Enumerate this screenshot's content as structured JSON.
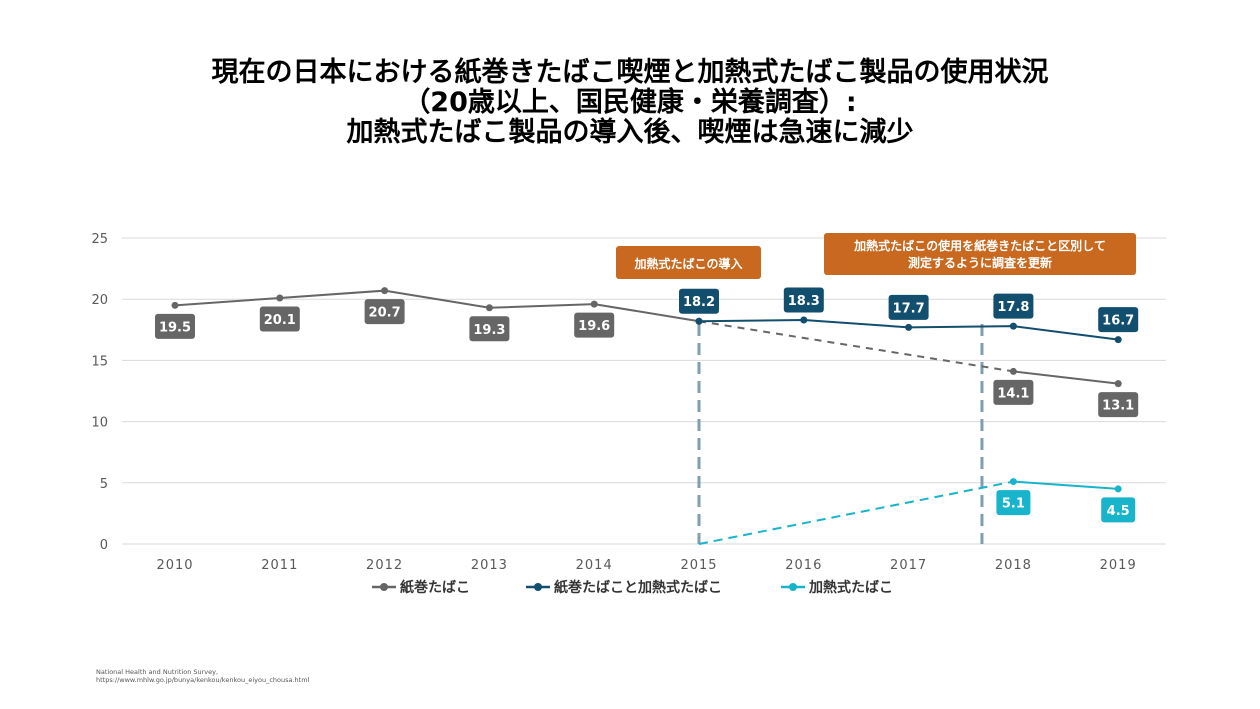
{
  "title": {
    "line1": "現在の日本における紙巻きたばこ喫煙と加熱式たばこ製品の使用状況",
    "line2": "（20歳以上、国民健康・栄養調査）:",
    "line3": "加熱式たばこ製品の導入後、喫煙は急速に減少"
  },
  "source": {
    "line1": "National Health and Nutrition Survey,",
    "line2": "https://www.mhlw.go.jp/bunya/kenkou/kenkou_eiyou_chousa.html"
  },
  "colors": {
    "cigarette": "#666666",
    "combined": "#124e6e",
    "heated": "#17b4cc",
    "annotation": "#c8691f",
    "marker_line": "#7f9fb0",
    "grid": "#d9d9d9"
  },
  "chart_data": {
    "type": "line",
    "x": [
      2010,
      2011,
      2012,
      2013,
      2014,
      2015,
      2016,
      2017,
      2018,
      2019
    ],
    "ylim": [
      0,
      25
    ],
    "yticks": [
      0,
      5,
      10,
      15,
      20,
      25
    ],
    "grid": true,
    "legend_position": "bottom",
    "series": [
      {
        "name": "紙巻たばこ",
        "color": "#666666",
        "values": [
          19.5,
          20.1,
          20.7,
          19.3,
          19.6,
          18.2,
          null,
          null,
          14.1,
          13.1
        ],
        "labels": [
          "19.5",
          "20.1",
          "20.7",
          "19.3",
          "19.6",
          null,
          null,
          null,
          "14.1",
          "13.1"
        ]
      },
      {
        "name": "紙巻たばこと加熱式たばこ",
        "color": "#124e6e",
        "values": [
          null,
          null,
          null,
          null,
          null,
          18.2,
          18.3,
          17.7,
          17.8,
          16.7
        ],
        "labels": [
          null,
          null,
          null,
          null,
          null,
          "18.2",
          "18.3",
          "17.7",
          "17.8",
          "16.7"
        ]
      },
      {
        "name": "加熱式たばこ",
        "color": "#17b4cc",
        "values": [
          null,
          null,
          null,
          null,
          null,
          null,
          null,
          null,
          5.1,
          4.5
        ],
        "labels": [
          null,
          null,
          null,
          null,
          null,
          null,
          null,
          null,
          "5.1",
          "4.5"
        ]
      }
    ],
    "annotations": [
      {
        "text": [
          "加熱式たばこの導入"
        ],
        "x": 2015
      },
      {
        "text": [
          "加熱式たばこの使用を紙巻きたばこと区別して",
          "測定するように調査を更新"
        ],
        "x": 2017.7
      }
    ]
  }
}
